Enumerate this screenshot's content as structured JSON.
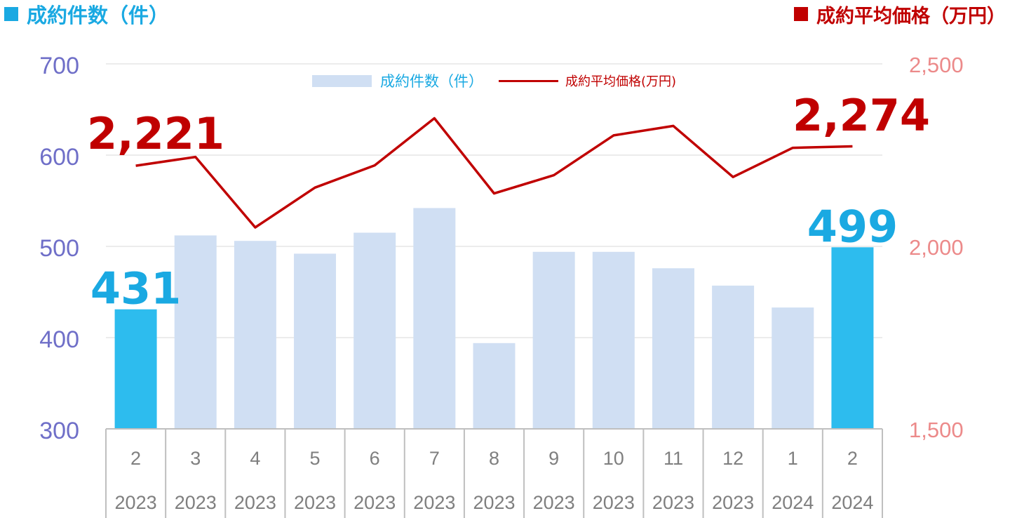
{
  "header": {
    "left_title": "成約件数（件）",
    "right_title": "成約平均価格（万円）",
    "left_color": "#1aa9e2",
    "right_color": "#c00000"
  },
  "legend": {
    "bar_label": "成約件数（件）",
    "line_label": "成約平均価格(万円)"
  },
  "chart_data": {
    "type": "bar",
    "categories": [
      {
        "month": "2",
        "year": "2023"
      },
      {
        "month": "3",
        "year": "2023"
      },
      {
        "month": "4",
        "year": "2023"
      },
      {
        "month": "5",
        "year": "2023"
      },
      {
        "month": "6",
        "year": "2023"
      },
      {
        "month": "7",
        "year": "2023"
      },
      {
        "month": "8",
        "year": "2023"
      },
      {
        "month": "9",
        "year": "2023"
      },
      {
        "month": "10",
        "year": "2023"
      },
      {
        "month": "11",
        "year": "2023"
      },
      {
        "month": "12",
        "year": "2023"
      },
      {
        "month": "1",
        "year": "2024"
      },
      {
        "month": "2",
        "year": "2024"
      }
    ],
    "series": [
      {
        "name": "成約件数（件）",
        "type": "bar",
        "axis": "left",
        "values": [
          431,
          512,
          506,
          492,
          515,
          542,
          394,
          494,
          494,
          476,
          457,
          433,
          499
        ],
        "highlight_indices": [
          0,
          12
        ],
        "color": "#d0dff3",
        "highlight_color": "#2dbcee"
      },
      {
        "name": "成約平均価格(万円)",
        "type": "line",
        "axis": "right",
        "values": [
          2221,
          2245,
          2052,
          2161,
          2222,
          2351,
          2145,
          2195,
          2304,
          2330,
          2190,
          2270,
          2274
        ],
        "color": "#c00000"
      }
    ],
    "y_left": {
      "min": 300,
      "max": 700,
      "ticks": [
        300,
        400,
        500,
        600,
        700
      ],
      "tick_labels": [
        "300",
        "400",
        "500",
        "600",
        "700"
      ],
      "color": "#6f6fc8"
    },
    "y_right": {
      "min": 1500,
      "max": 2500,
      "ticks": [
        1500,
        2000,
        2500
      ],
      "tick_labels": [
        "1,500",
        "2,000",
        "2,500"
      ],
      "color": "#ec8a8a"
    },
    "annotations": [
      {
        "series": 0,
        "index": 0,
        "text": "431",
        "color": "#1aa9e2"
      },
      {
        "series": 0,
        "index": 12,
        "text": "499",
        "color": "#1aa9e2"
      },
      {
        "series": 1,
        "index": 0,
        "text": "2,221",
        "color": "#c00000"
      },
      {
        "series": 1,
        "index": 12,
        "text": "2,274",
        "color": "#c00000"
      }
    ],
    "grid": true
  }
}
